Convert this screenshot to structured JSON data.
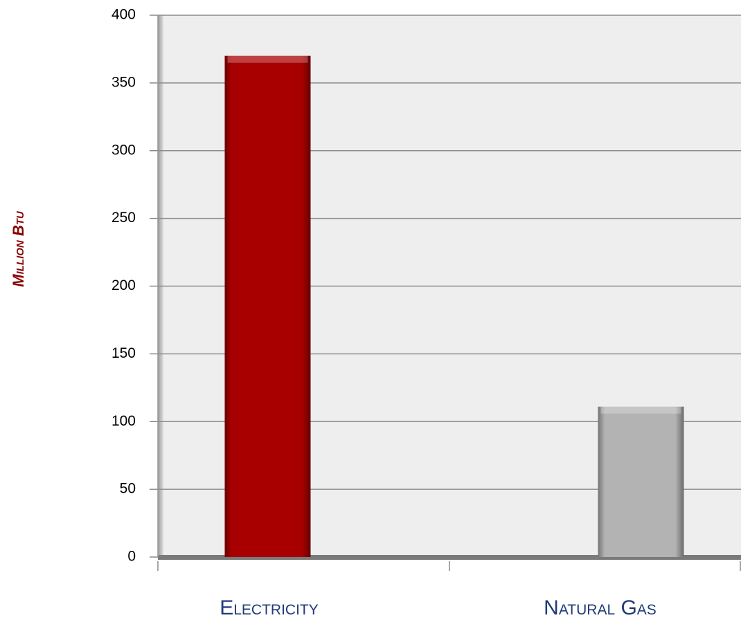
{
  "chart_data": {
    "type": "bar",
    "y_label": "Million Btu",
    "categories": [
      "Electricity",
      "Natural Gas"
    ],
    "values": [
      370,
      111
    ],
    "colors": [
      "#a80000",
      "#b3b3b3"
    ],
    "ylim": [
      0,
      400
    ],
    "yticks": [
      0,
      50,
      100,
      150,
      200,
      250,
      300,
      350,
      400
    ],
    "grid": true
  }
}
